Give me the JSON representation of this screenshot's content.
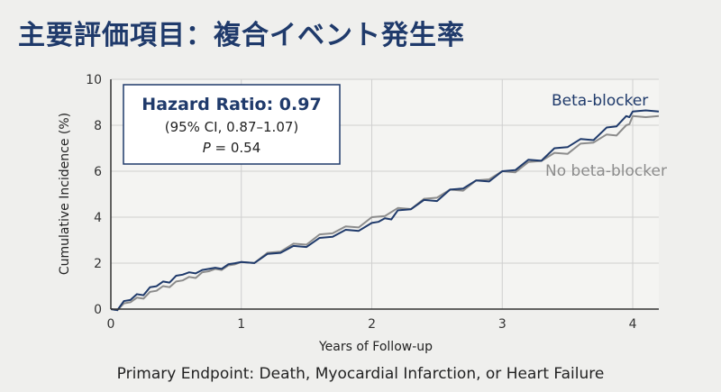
{
  "title": "主要評価項目：複合イベント発生率",
  "caption": "Primary Endpoint: Death, Myocardial Infarction, or Heart Failure",
  "colors": {
    "title": "#1f3a6b",
    "beta_blocker": "#1f3a6b",
    "no_beta_blocker": "#8c8c8c",
    "background": "#efefed"
  },
  "hazard_box": {
    "title": "Hazard Ratio: 0.97",
    "ci": "(95% CI, 0.87–1.07)",
    "p_label": "P",
    "p_value": " = 0.54"
  },
  "chart_data": {
    "type": "line",
    "xlabel": "Years of Follow-up",
    "ylabel": "Cumulative Incidence (%)",
    "xlim": [
      0,
      4.2
    ],
    "ylim": [
      0,
      10
    ],
    "xticks": [
      0,
      1,
      2,
      3,
      4
    ],
    "yticks": [
      0,
      2,
      4,
      6,
      8,
      10
    ],
    "grid": true,
    "series": [
      {
        "name": "Beta-blocker",
        "color": "#1f3a6b",
        "x": [
          0,
          0.1,
          0.2,
          0.3,
          0.4,
          0.5,
          0.6,
          0.7,
          0.8,
          0.9,
          1.0,
          1.2,
          1.4,
          1.6,
          1.8,
          2.0,
          2.1,
          2.2,
          2.4,
          2.6,
          2.8,
          3.0,
          3.2,
          3.4,
          3.6,
          3.8,
          3.95,
          4.0,
          4.2
        ],
        "y": [
          0,
          0.35,
          0.65,
          0.95,
          1.2,
          1.45,
          1.6,
          1.7,
          1.8,
          1.95,
          2.05,
          2.4,
          2.75,
          3.1,
          3.45,
          3.75,
          3.95,
          4.3,
          4.75,
          5.2,
          5.6,
          6.0,
          6.5,
          7.0,
          7.4,
          7.9,
          8.4,
          8.6,
          8.6
        ]
      },
      {
        "name": "No beta-blocker",
        "color": "#8c8c8c",
        "x": [
          0,
          0.1,
          0.2,
          0.3,
          0.4,
          0.5,
          0.6,
          0.7,
          0.8,
          0.9,
          1.0,
          1.2,
          1.4,
          1.6,
          1.8,
          2.0,
          2.2,
          2.4,
          2.6,
          2.8,
          3.0,
          3.2,
          3.4,
          3.6,
          3.8,
          3.95,
          4.0,
          4.2
        ],
        "y": [
          0,
          0.25,
          0.5,
          0.75,
          1.0,
          1.2,
          1.4,
          1.6,
          1.75,
          1.9,
          2.05,
          2.45,
          2.85,
          3.25,
          3.6,
          4.0,
          4.4,
          4.8,
          5.2,
          5.6,
          6.0,
          6.4,
          6.8,
          7.2,
          7.6,
          8.0,
          8.4,
          8.4
        ]
      }
    ]
  }
}
